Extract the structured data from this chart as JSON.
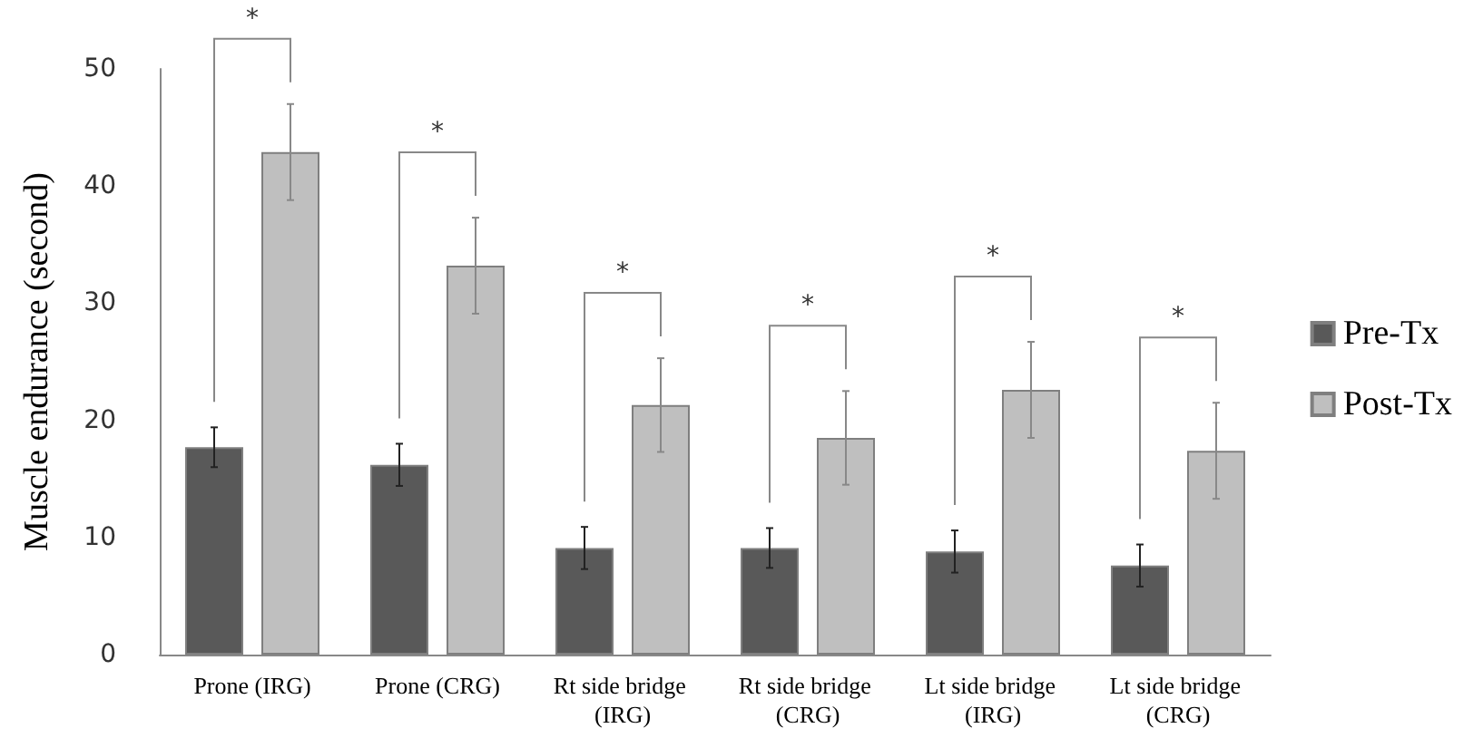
{
  "chart_data": {
    "type": "bar",
    "ylabel": "Muscle endurance (second)",
    "categories": [
      "Prone (IRG)",
      "Prone (CRG)",
      "Rt side bridge (IRG)",
      "Rt side bridge (CRG)",
      "Lt side bridge (IRG)",
      "Lt side bridge (CRG)"
    ],
    "series": [
      {
        "name": "Pre-Tx",
        "color": "#595959",
        "values": [
          17.7,
          16.2,
          9.1,
          9.1,
          8.8,
          7.6
        ],
        "errors": [
          1.7,
          1.8,
          1.8,
          1.7,
          1.8,
          1.8
        ]
      },
      {
        "name": "Post-Tx",
        "color": "#bfbfbf",
        "values": [
          42.9,
          33.2,
          21.3,
          18.5,
          22.6,
          17.4
        ],
        "errors": [
          4.1,
          4.1,
          4.0,
          4.0,
          4.1,
          4.1
        ]
      }
    ],
    "ylim": [
      0,
      50
    ],
    "yticks": [
      0,
      10,
      20,
      30,
      40,
      50
    ],
    "grid": false,
    "legend": "right",
    "annotations": [
      "*",
      "*",
      "*",
      "*",
      "*",
      "*"
    ]
  }
}
